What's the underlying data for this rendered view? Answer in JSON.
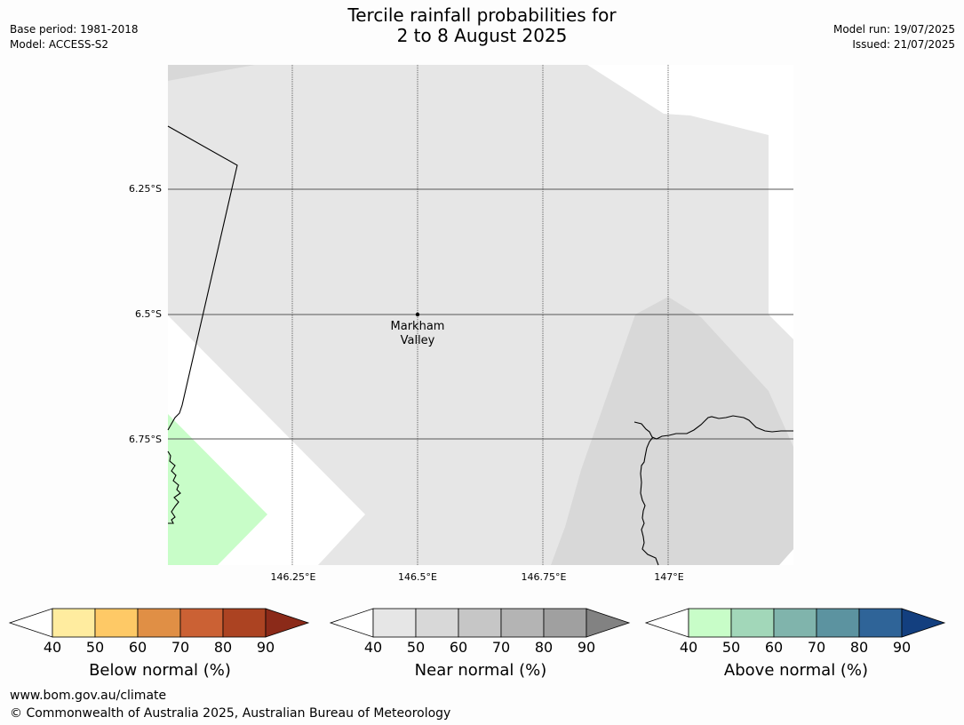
{
  "header": {
    "title_line1": "Tercile rainfall probabilities for",
    "title_line2": "2 to 8 August 2025",
    "base_period": "Base period: 1981-2018",
    "model": "Model: ACCESS-S2",
    "model_run": "Model run: 19/07/2025",
    "issued": "Issued: 21/07/2025"
  },
  "map": {
    "lat_labels": [
      "6.25°S",
      "6.5°S",
      "6.75°S"
    ],
    "lon_labels": [
      "146.25°E",
      "146.5°E",
      "146.75°E",
      "147°E"
    ],
    "location": {
      "name_line1": "Markham",
      "name_line2": "Valley",
      "lat": -6.5,
      "lon": 146.5
    },
    "colors": {
      "near_normal_40_50": "#e6e6e6",
      "near_normal_50_60": "#d8d8d8",
      "above_normal_40_50": "#c8fdc8",
      "no_signal": "#ffffff"
    }
  },
  "colorbars": [
    {
      "label": "Below normal (%)",
      "ticks": [
        "40",
        "50",
        "60",
        "70",
        "80",
        "90"
      ],
      "colors": [
        "#ffec9f",
        "#fec966",
        "#e08f45",
        "#cb6134",
        "#ac4322",
        "#8b2a19"
      ]
    },
    {
      "label": "Near normal (%)",
      "ticks": [
        "40",
        "50",
        "60",
        "70",
        "80",
        "90"
      ],
      "colors": [
        "#e6e6e6",
        "#d8d8d8",
        "#c6c6c6",
        "#b4b4b4",
        "#a0a0a0",
        "#828282"
      ]
    },
    {
      "label": "Above normal (%)",
      "ticks": [
        "40",
        "50",
        "60",
        "70",
        "80",
        "90"
      ],
      "colors": [
        "#c8fdc8",
        "#a2d7b9",
        "#80b4ac",
        "#5c93a0",
        "#2f6498",
        "#133f7f"
      ]
    }
  ],
  "footer": {
    "url": "www.bom.gov.au/climate",
    "copyright": "© Commonwealth of Australia 2025, Australian Bureau of Meteorology"
  }
}
